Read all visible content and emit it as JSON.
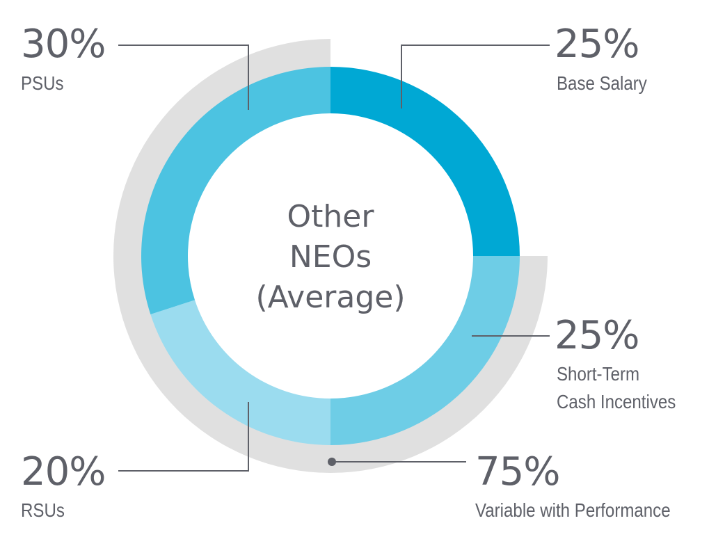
{
  "chart_data": {
    "type": "pie",
    "title": "Other NEOs (Average)",
    "title_lines": [
      "Other",
      "NEOs",
      "(Average)"
    ],
    "slices": [
      {
        "label": "Base Salary",
        "label_lines": [
          "Base Salary"
        ],
        "percent_text": "25%",
        "value": 25,
        "color": "#00a8d4"
      },
      {
        "label": "Short-Term Cash Incentives",
        "label_lines": [
          "Short-Term",
          "Cash Incentives"
        ],
        "percent_text": "25%",
        "value": 25,
        "color": "#6ecde6"
      },
      {
        "label": "RSUs",
        "label_lines": [
          "RSUs"
        ],
        "percent_text": "20%",
        "value": 20,
        "color": "#9bdcef"
      },
      {
        "label": "PSUs",
        "label_lines": [
          "PSUs"
        ],
        "percent_text": "30%",
        "value": 30,
        "color": "#4cc3e1"
      }
    ],
    "outer_arc": {
      "label": "Variable with Performance",
      "label_lines": [
        "Variable with Performance"
      ],
      "percent_text": "75%",
      "value": 75,
      "color": "#e0e0e0"
    },
    "colors": {
      "text": "#5e6068",
      "leader": "#5e6068"
    }
  }
}
